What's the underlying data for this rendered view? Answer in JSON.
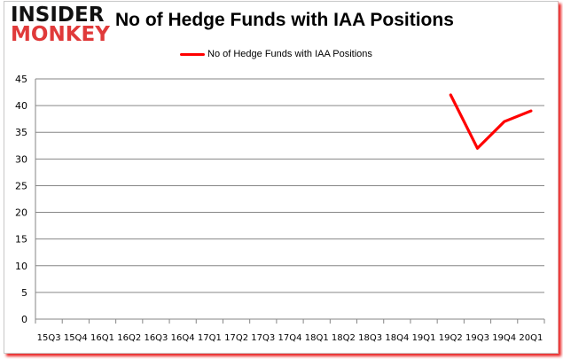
{
  "logo": {
    "line1": "INSIDER",
    "line2": "MONKEY"
  },
  "title": "No of Hedge Funds with IAA Positions",
  "legend": {
    "label": "No of Hedge Funds with IAA Positions",
    "color": "#ff0000"
  },
  "chart_data": {
    "type": "line",
    "title": "No of Hedge Funds with IAA Positions",
    "xlabel": "",
    "ylabel": "",
    "ylim": [
      0,
      45
    ],
    "yticks": [
      0,
      5,
      10,
      15,
      20,
      25,
      30,
      35,
      40,
      45
    ],
    "grid": true,
    "legend_position": "top",
    "categories": [
      "15Q3",
      "15Q4",
      "16Q1",
      "16Q2",
      "16Q3",
      "16Q4",
      "17Q1",
      "17Q2",
      "17Q3",
      "17Q4",
      "18Q1",
      "18Q2",
      "18Q3",
      "18Q4",
      "19Q1",
      "19Q2",
      "19Q3",
      "19Q4",
      "20Q1"
    ],
    "series": [
      {
        "name": "No of Hedge Funds with IAA Positions",
        "color": "#ff0000",
        "values": [
          null,
          null,
          null,
          null,
          null,
          null,
          null,
          null,
          null,
          null,
          null,
          null,
          null,
          null,
          null,
          42,
          32,
          37,
          39
        ]
      }
    ]
  }
}
